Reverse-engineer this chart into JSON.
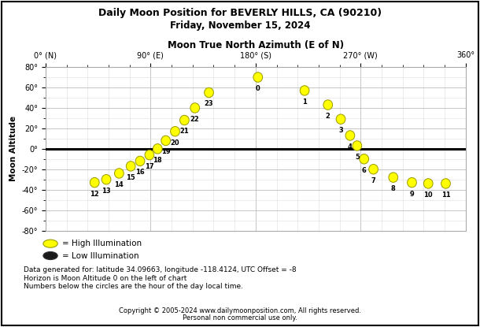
{
  "title1": "Daily Moon Position for BEVERLY HILLS, CA (90210)",
  "title2": "Friday, November 15, 2024",
  "xlabel": "Moon True North Azimuth (E of N)",
  "ylabel": "Moon Altitude",
  "xlim": [
    0,
    360
  ],
  "ylim": [
    -80,
    80
  ],
  "xtick_positions": [
    0,
    90,
    180,
    270,
    360
  ],
  "xtick_labels": [
    "0° (N)",
    "90° (E)",
    "180° (S)",
    "270° (W)",
    "360°"
  ],
  "ytick_positions": [
    -80,
    -60,
    -40,
    -20,
    0,
    20,
    40,
    60,
    80
  ],
  "ytick_labels": [
    "-80°",
    "-60°",
    "-40°",
    "-20°",
    "0°",
    "20°",
    "40°",
    "60°",
    "80°"
  ],
  "moon_data": [
    {
      "hour": 12,
      "azimuth": 42,
      "altitude": -33,
      "high": true
    },
    {
      "hour": 13,
      "azimuth": 52,
      "altitude": -30,
      "high": true
    },
    {
      "hour": 14,
      "azimuth": 63,
      "altitude": -24,
      "high": true
    },
    {
      "hour": 15,
      "azimuth": 73,
      "altitude": -17,
      "high": true
    },
    {
      "hour": 16,
      "azimuth": 81,
      "altitude": -12,
      "high": true
    },
    {
      "hour": 17,
      "azimuth": 89,
      "altitude": -6,
      "high": true
    },
    {
      "hour": 18,
      "azimuth": 96,
      "altitude": 0,
      "high": true
    },
    {
      "hour": 19,
      "azimuth": 103,
      "altitude": 8,
      "high": true
    },
    {
      "hour": 20,
      "azimuth": 111,
      "altitude": 17,
      "high": true
    },
    {
      "hour": 21,
      "azimuth": 119,
      "altitude": 28,
      "high": true
    },
    {
      "hour": 22,
      "azimuth": 128,
      "altitude": 40,
      "high": true
    },
    {
      "hour": 23,
      "azimuth": 140,
      "altitude": 55,
      "high": true
    },
    {
      "hour": 0,
      "azimuth": 182,
      "altitude": 70,
      "high": true
    },
    {
      "hour": 1,
      "azimuth": 222,
      "altitude": 57,
      "high": true
    },
    {
      "hour": 2,
      "azimuth": 242,
      "altitude": 43,
      "high": true
    },
    {
      "hour": 3,
      "azimuth": 253,
      "altitude": 29,
      "high": true
    },
    {
      "hour": 4,
      "azimuth": 261,
      "altitude": 13,
      "high": true
    },
    {
      "hour": 5,
      "azimuth": 267,
      "altitude": 3,
      "high": true
    },
    {
      "hour": 6,
      "azimuth": 273,
      "altitude": -10,
      "high": true
    },
    {
      "hour": 7,
      "azimuth": 281,
      "altitude": -20,
      "high": true
    },
    {
      "hour": 8,
      "azimuth": 298,
      "altitude": -28,
      "high": true
    },
    {
      "hour": 9,
      "azimuth": 314,
      "altitude": -33,
      "high": true
    },
    {
      "hour": 10,
      "azimuth": 328,
      "altitude": -34,
      "high": true
    },
    {
      "hour": 11,
      "azimuth": 343,
      "altitude": -34,
      "high": true
    }
  ],
  "circle_color_high": "#FFFF00",
  "circle_color_low": "#1a1a1a",
  "circle_edge_color": "#999900",
  "legend_high_label": "= High Illumination",
  "legend_low_label": "= Low Illumination",
  "footer_line1": "Data generated for: latitude 34.09663, longitude -118.4124, UTC Offset = -8",
  "footer_line2": "Horizon is Moon Altitude 0 on the left of chart",
  "footer_line3": "Numbers below the circles are the hour of the day local time.",
  "copyright": "Copyright © 2005-2024 www.dailymoonposition.com, All rights reserved.",
  "personal": "Personal non commercial use only.",
  "bg_color": "#ffffff",
  "grid_major_color": "#bbbbbb",
  "grid_minor_color": "#dddddd"
}
